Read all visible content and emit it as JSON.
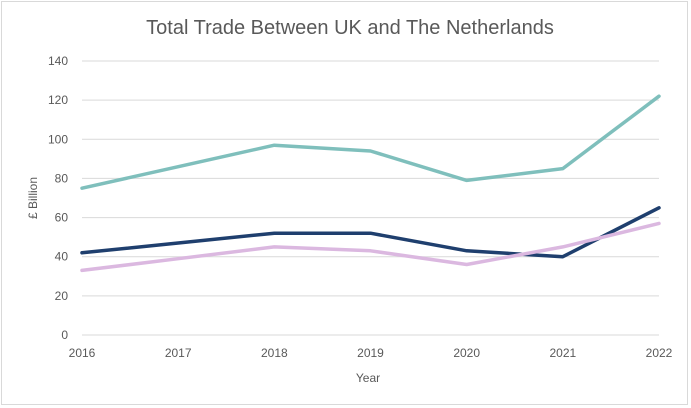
{
  "chart_data": {
    "type": "line",
    "title": "Total Trade Between UK and The Netherlands",
    "xlabel": "Year",
    "ylabel": "£ Billion",
    "x": [
      "2016",
      "2017",
      "2018",
      "2019",
      "2020",
      "2021",
      "2022"
    ],
    "yticks": [
      "0",
      "20",
      "40",
      "60",
      "80",
      "100",
      "120",
      "140"
    ],
    "ylim": [
      0,
      140
    ],
    "grid": true,
    "series": [
      {
        "color": "#7fbfbc",
        "values": [
          75,
          86,
          97,
          94,
          79,
          85,
          122
        ]
      },
      {
        "color": "#1f3f6e",
        "values": [
          42,
          47,
          52,
          52,
          43,
          40,
          65
        ]
      },
      {
        "color": "#dbb8e0",
        "values": [
          33,
          39,
          45,
          43,
          36,
          45,
          57
        ]
      }
    ]
  }
}
